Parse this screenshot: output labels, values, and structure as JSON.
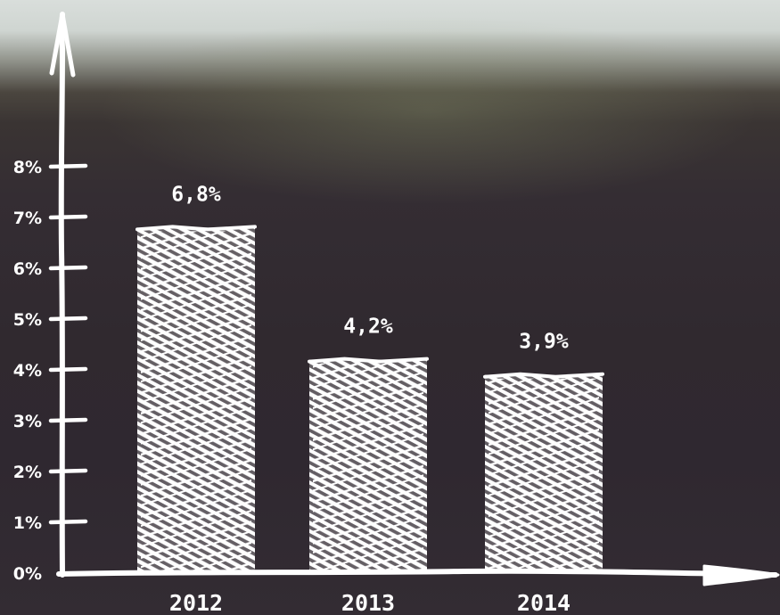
{
  "chart_data": {
    "type": "bar",
    "categories": [
      "2012",
      "2013",
      "2014"
    ],
    "values": [
      6.8,
      4.2,
      3.9
    ],
    "value_labels": [
      "6,8%",
      "4,2%",
      "3,9%"
    ],
    "y_ticks": [
      0,
      1,
      2,
      3,
      4,
      5,
      6,
      7,
      8
    ],
    "y_tick_labels": [
      "0%",
      "1%",
      "2%",
      "3%",
      "4%",
      "5%",
      "6%",
      "7%",
      "8%"
    ],
    "ylim": [
      0,
      8
    ],
    "title": "",
    "xlabel": "",
    "ylabel": "",
    "grid": false,
    "legend": "none",
    "colors": {
      "bars": "#ffffff",
      "axes": "#ffffff",
      "text": "#ffffff"
    }
  }
}
